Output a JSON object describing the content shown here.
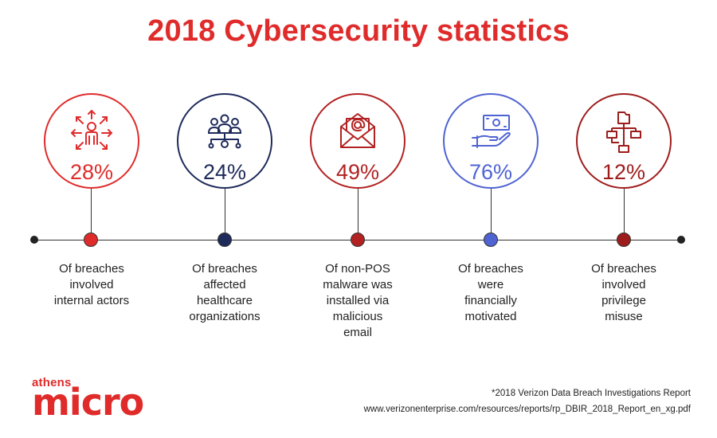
{
  "title": "2018 Cybersecurity statistics",
  "stats": [
    {
      "percent": "28%",
      "desc": [
        "Of breaches",
        "involved",
        "internal actors"
      ],
      "color": "#e02b2b",
      "icon": "people-arrows-icon"
    },
    {
      "percent": "24%",
      "desc": [
        "Of breaches",
        "affected",
        "healthcare",
        "organizations"
      ],
      "color": "#1e2a5a",
      "icon": "network-people-icon"
    },
    {
      "percent": "49%",
      "desc": [
        "Of non-POS",
        "malware was",
        "installed via",
        "malicious",
        "email"
      ],
      "color": "#b22222",
      "icon": "email-icon"
    },
    {
      "percent": "76%",
      "desc": [
        "Of breaches",
        "were",
        "financially",
        "motivated"
      ],
      "color": "#4f63d2",
      "icon": "money-hand-icon"
    },
    {
      "percent": "12%",
      "desc": [
        "Of breaches",
        "involved",
        "privilege",
        "misuse"
      ],
      "color": "#9e1c1c",
      "icon": "hierarchy-icon"
    }
  ],
  "logo": {
    "small": "athens",
    "big": "micro"
  },
  "source": {
    "line1": "*2018 Verizon Data Breach Investigations Report",
    "line2": "www.verizonenterprise.com/resources/reports/rp_DBIR_2018_Report_en_xg.pdf"
  }
}
